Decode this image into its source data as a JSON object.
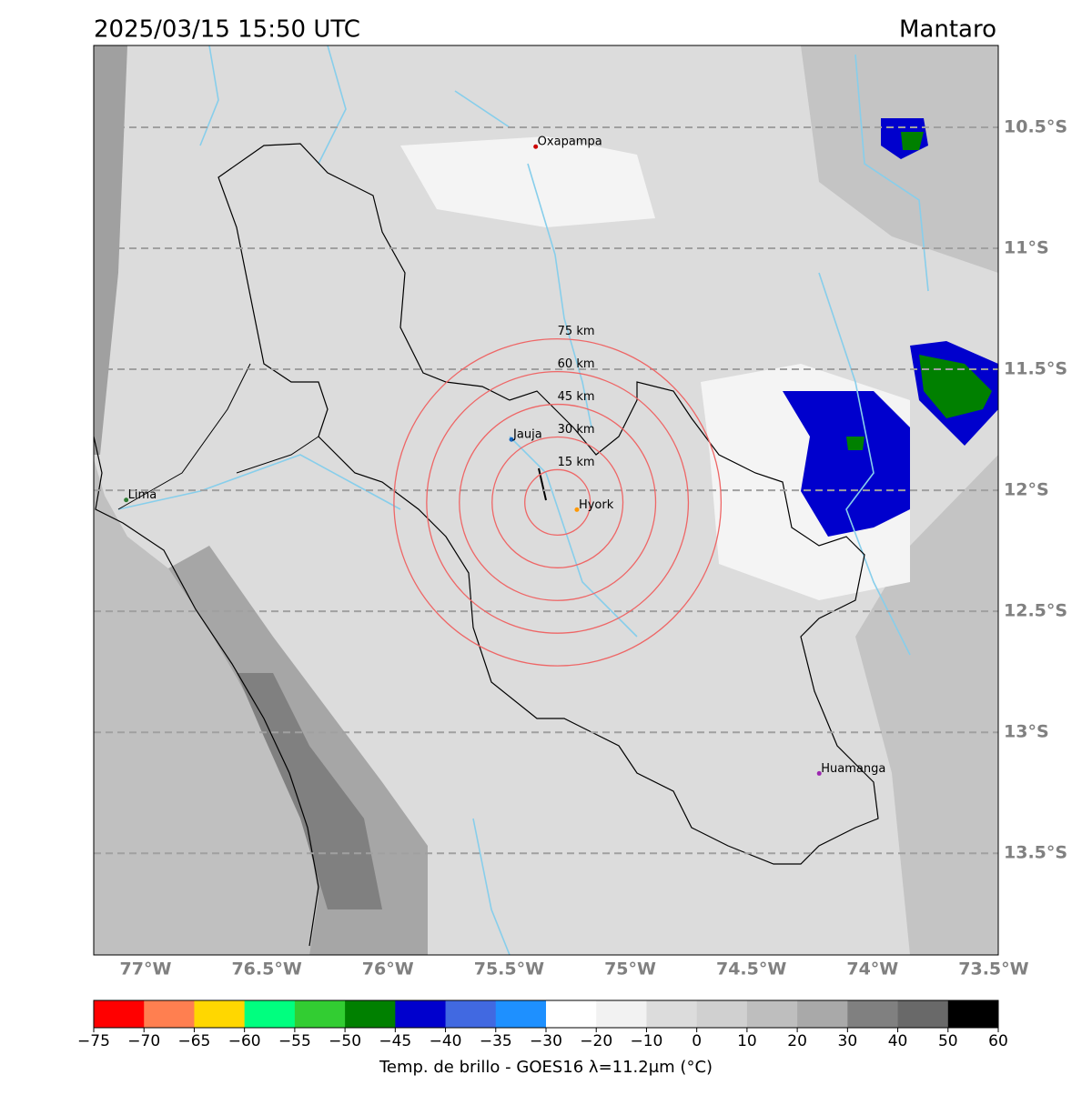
{
  "header": {
    "title": "2025/03/15 15:50 UTC",
    "region": "Mantaro"
  },
  "map": {
    "lat_ticks": [
      {
        "value": -10.5,
        "label": "10.5°S"
      },
      {
        "value": -11,
        "label": "11°S"
      },
      {
        "value": -11.5,
        "label": "11.5°S"
      },
      {
        "value": -12,
        "label": "12°S"
      },
      {
        "value": -12.5,
        "label": "12.5°S"
      },
      {
        "value": -13,
        "label": "13°S"
      },
      {
        "value": -13.5,
        "label": "13.5°S"
      }
    ],
    "lon_ticks": [
      {
        "value": -77,
        "label": "77°W"
      },
      {
        "value": -76.5,
        "label": "76.5°W"
      },
      {
        "value": -76,
        "label": "76°W"
      },
      {
        "value": -75.5,
        "label": "75.5°W"
      },
      {
        "value": -75,
        "label": "75°W"
      },
      {
        "value": -74.5,
        "label": "74.5°W"
      },
      {
        "value": -74,
        "label": "74°W"
      },
      {
        "value": -73.5,
        "label": "73.5°W"
      }
    ],
    "rings": [
      {
        "value": 15,
        "label": "15 km"
      },
      {
        "value": 30,
        "label": "30 km"
      },
      {
        "value": 45,
        "label": "45 km"
      },
      {
        "value": 60,
        "label": "60 km"
      },
      {
        "value": 75,
        "label": "75 km"
      }
    ],
    "cities": [
      "Oxapampa",
      "Jauja",
      "Hyork",
      "Huamanga",
      "Lima"
    ]
  },
  "colorbar": {
    "label": "Temp. de brillo - GOES16 λ=11.2μm (°C)",
    "colors": [
      "#ff0000",
      "#ff7f50",
      "#ffd700",
      "#00ff7f",
      "#32cd32",
      "#008000",
      "#0000cd",
      "#4169e1",
      "#1e90ff",
      "#ffffff",
      "#f2f2f2",
      "#dcdcdc",
      "#d0d0d0",
      "#bebebe",
      "#a9a9a9",
      "#808080",
      "#696969",
      "#000000"
    ],
    "ticks": [
      {
        "value": -75,
        "label": "−75"
      },
      {
        "value": -70,
        "label": "−70"
      },
      {
        "value": -65,
        "label": "−65"
      },
      {
        "value": -60,
        "label": "−60"
      },
      {
        "value": -55,
        "label": "−55"
      },
      {
        "value": -50,
        "label": "−50"
      },
      {
        "value": -45,
        "label": "−45"
      },
      {
        "value": -40,
        "label": "−40"
      },
      {
        "value": -35,
        "label": "−35"
      },
      {
        "value": -30,
        "label": "−30"
      },
      {
        "value": -20,
        "label": "−20"
      },
      {
        "value": -10,
        "label": "−10"
      },
      0,
      10,
      20,
      30,
      40,
      50,
      60
    ]
  }
}
